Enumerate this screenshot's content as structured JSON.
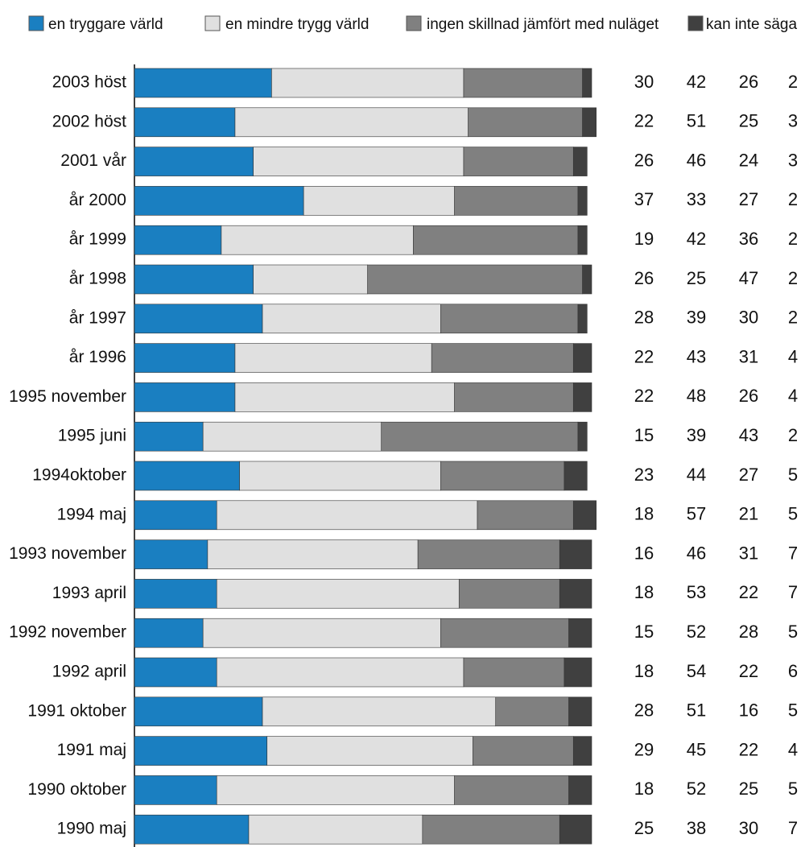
{
  "chart_data": {
    "type": "stacked-bar-horizontal",
    "categories": [
      "2003 höst",
      "2002 höst",
      "2001 vår",
      "år 2000",
      "år 1999",
      "år 1998",
      "år 1997",
      "år 1996",
      "1995 november",
      "1995 juni",
      "1994oktober",
      "1994 maj",
      "1993 november",
      "1993 april",
      "1992 november",
      "1992 april",
      "1991 oktober",
      "1991 maj",
      "1990 oktober",
      "1990 maj"
    ],
    "series": [
      {
        "name": "en tryggare värld",
        "color": "#1a7fc1",
        "values": [
          30,
          22,
          26,
          37,
          19,
          26,
          28,
          22,
          22,
          15,
          23,
          18,
          16,
          18,
          15,
          18,
          28,
          29,
          18,
          25
        ]
      },
      {
        "name": "en mindre trygg värld",
        "color": "#e0e0e0",
        "values": [
          42,
          51,
          46,
          33,
          42,
          25,
          39,
          43,
          48,
          39,
          44,
          57,
          46,
          53,
          52,
          54,
          51,
          45,
          52,
          38
        ]
      },
      {
        "name": "ingen skillnad jämfört med nuläget",
        "color": "#808080",
        "values": [
          26,
          25,
          24,
          27,
          36,
          47,
          30,
          31,
          26,
          43,
          27,
          21,
          31,
          22,
          28,
          22,
          16,
          22,
          25,
          30
        ]
      },
      {
        "name": "kan inte säga",
        "color": "#404040",
        "values": [
          2,
          3,
          3,
          2,
          2,
          2,
          2,
          4,
          4,
          2,
          5,
          5,
          7,
          7,
          5,
          6,
          5,
          4,
          5,
          7
        ]
      }
    ],
    "xlim": [
      0,
      100
    ]
  }
}
